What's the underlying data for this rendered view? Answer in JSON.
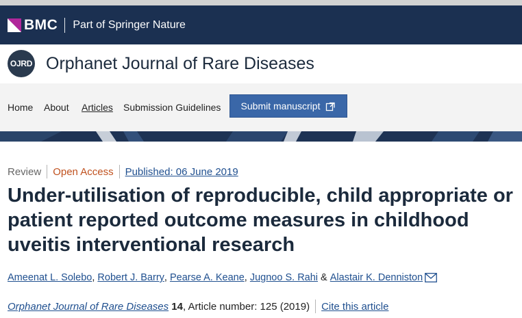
{
  "publisher": {
    "logo_text": "BMC",
    "tagline": "Part of Springer Nature"
  },
  "journal": {
    "logo_text": "OJRD",
    "title": "Orphanet Journal of Rare Diseases"
  },
  "nav": {
    "items": [
      "Home",
      "About",
      "Articles",
      "Submission Guidelines"
    ],
    "active": "Articles",
    "submit_label": "Submit manuscript"
  },
  "article": {
    "type": "Review",
    "access": "Open Access",
    "published": "Published: 06 June 2019",
    "title": "Under-utilisation of reproducible, child appropriate or patient reported outcome measures in childhood uveitis interventional research",
    "authors": [
      {
        "name": "Ameenat L. Solebo",
        "after": ", "
      },
      {
        "name": "Robert J. Barry",
        "after": ", "
      },
      {
        "name": "Pearse A. Keane",
        "after": ", "
      },
      {
        "name": "Jugnoo S. Rahi",
        "after": " & "
      },
      {
        "name": "Alastair K. Denniston",
        "after": ""
      }
    ],
    "citation": {
      "journal": "Orphanet Journal of Rare Diseases",
      "volume": "14",
      "article_info": ", Article number: 125 (2019)",
      "cite_label": "Cite this article"
    }
  },
  "colors": {
    "header_navy": "#1b3051",
    "bmc_magenta": "#b1279b",
    "link_blue": "#1f4f8f",
    "open_access": "#c0511e",
    "submit_button": "#3a67a8"
  }
}
